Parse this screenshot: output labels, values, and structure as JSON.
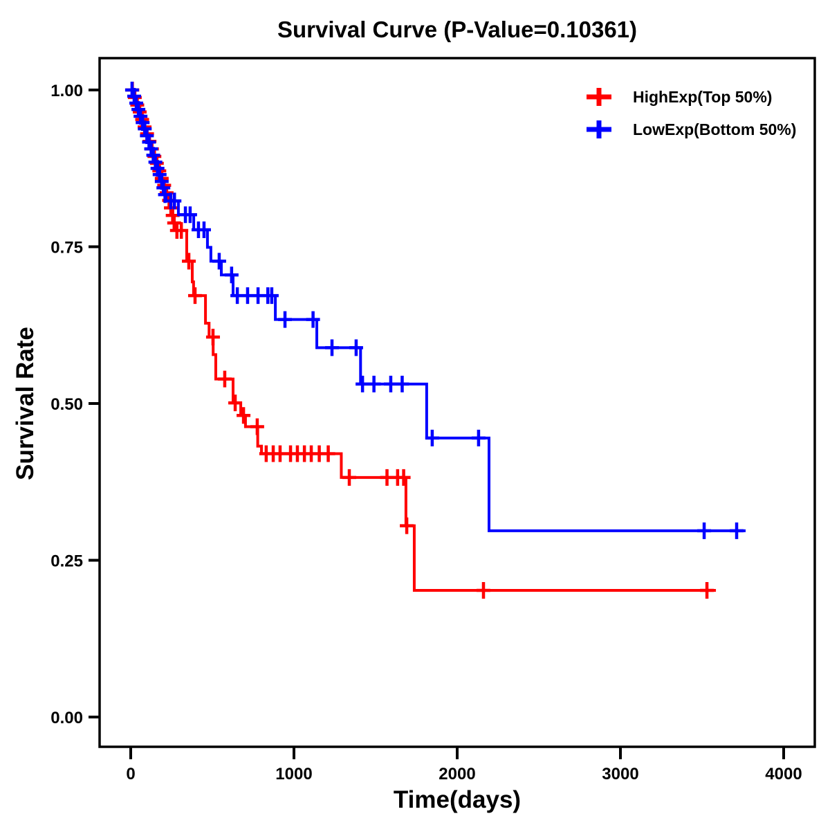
{
  "page": {
    "background_color": "#FFFFFF",
    "text_color": "#000000"
  },
  "chart_data": {
    "type": "line",
    "chart_style": "kaplan_meier_step_survival",
    "title": "Survival Curve (P-Value=0.10361)",
    "p_value": "0.10361",
    "xlabel": "Time(days)",
    "ylabel": "Survival Rate",
    "x_ticks": [
      "0",
      "1000",
      "2000",
      "3000",
      "4000"
    ],
    "x_tick_values": [
      0,
      1000,
      2000,
      3000,
      4000
    ],
    "y_ticks": [
      "1.00",
      "0.75",
      "0.50",
      "0.25",
      "0.00"
    ],
    "y_tick_values": [
      1.0,
      0.75,
      0.5,
      0.25,
      0.0
    ],
    "xlim": [
      -190,
      4190
    ],
    "ylim": [
      0,
      1.05
    ],
    "grid": false,
    "legend_position": "top-right",
    "marker_meaning": "censored-observation-plus-tick",
    "series": [
      {
        "name": "HighExp(Top 50%)",
        "color": "#FF0000",
        "end_time": 3585,
        "steps": [
          [
            0,
            1.0
          ],
          [
            15,
            0.988
          ],
          [
            30,
            0.976
          ],
          [
            45,
            0.965
          ],
          [
            60,
            0.953
          ],
          [
            75,
            0.941
          ],
          [
            90,
            0.93
          ],
          [
            105,
            0.918
          ],
          [
            120,
            0.906
          ],
          [
            135,
            0.894
          ],
          [
            150,
            0.883
          ],
          [
            165,
            0.871
          ],
          [
            180,
            0.859
          ],
          [
            195,
            0.848
          ],
          [
            210,
            0.836
          ],
          [
            225,
            0.824
          ],
          [
            240,
            0.812
          ],
          [
            252,
            0.8
          ],
          [
            262,
            0.788
          ],
          [
            270,
            0.776
          ],
          [
            343,
            0.727
          ],
          [
            377,
            0.694
          ],
          [
            385,
            0.672
          ],
          [
            458,
            0.628
          ],
          [
            480,
            0.606
          ],
          [
            505,
            0.578
          ],
          [
            521,
            0.539
          ],
          [
            627,
            0.501
          ],
          [
            674,
            0.481
          ],
          [
            703,
            0.463
          ],
          [
            778,
            0.432
          ],
          [
            801,
            0.42
          ],
          [
            1290,
            0.382
          ],
          [
            1686,
            0.305
          ],
          [
            1737,
            0.202
          ]
        ],
        "censors": [
          [
            10,
            1.0
          ],
          [
            25,
            0.988
          ],
          [
            40,
            0.976
          ],
          [
            55,
            0.965
          ],
          [
            70,
            0.953
          ],
          [
            85,
            0.941
          ],
          [
            100,
            0.93
          ],
          [
            115,
            0.918
          ],
          [
            130,
            0.906
          ],
          [
            145,
            0.894
          ],
          [
            160,
            0.883
          ],
          [
            175,
            0.871
          ],
          [
            190,
            0.859
          ],
          [
            205,
            0.848
          ],
          [
            220,
            0.836
          ],
          [
            235,
            0.824
          ],
          [
            246,
            0.812
          ],
          [
            257,
            0.8
          ],
          [
            266,
            0.788
          ],
          [
            283,
            0.776
          ],
          [
            310,
            0.776
          ],
          [
            356,
            0.727
          ],
          [
            394,
            0.672
          ],
          [
            504,
            0.606
          ],
          [
            576,
            0.539
          ],
          [
            640,
            0.501
          ],
          [
            691,
            0.481
          ],
          [
            775,
            0.463
          ],
          [
            830,
            0.42
          ],
          [
            873,
            0.42
          ],
          [
            915,
            0.42
          ],
          [
            979,
            0.42
          ],
          [
            1021,
            0.42
          ],
          [
            1064,
            0.42
          ],
          [
            1106,
            0.42
          ],
          [
            1155,
            0.42
          ],
          [
            1210,
            0.42
          ],
          [
            1339,
            0.382
          ],
          [
            1570,
            0.382
          ],
          [
            1635,
            0.382
          ],
          [
            1672,
            0.382
          ],
          [
            1691,
            0.305
          ],
          [
            2161,
            0.202
          ],
          [
            3530,
            0.202
          ]
        ]
      },
      {
        "name": "LowExp(Bottom 50%)",
        "color": "#0000FF",
        "end_time": 3767,
        "steps": [
          [
            0,
            1.0
          ],
          [
            13,
            0.99
          ],
          [
            26,
            0.979
          ],
          [
            39,
            0.969
          ],
          [
            52,
            0.958
          ],
          [
            65,
            0.948
          ],
          [
            78,
            0.938
          ],
          [
            91,
            0.927
          ],
          [
            104,
            0.917
          ],
          [
            117,
            0.906
          ],
          [
            130,
            0.896
          ],
          [
            143,
            0.885
          ],
          [
            156,
            0.875
          ],
          [
            169,
            0.865
          ],
          [
            182,
            0.854
          ],
          [
            195,
            0.844
          ],
          [
            205,
            0.833
          ],
          [
            216,
            0.823
          ],
          [
            292,
            0.801
          ],
          [
            386,
            0.777
          ],
          [
            470,
            0.749
          ],
          [
            491,
            0.727
          ],
          [
            555,
            0.705
          ],
          [
            627,
            0.672
          ],
          [
            886,
            0.634
          ],
          [
            1140,
            0.589
          ],
          [
            1408,
            0.531
          ],
          [
            1813,
            0.445
          ],
          [
            2195,
            0.297
          ]
        ],
        "censors": [
          [
            8,
            1.0
          ],
          [
            21,
            0.99
          ],
          [
            34,
            0.979
          ],
          [
            47,
            0.969
          ],
          [
            60,
            0.958
          ],
          [
            73,
            0.948
          ],
          [
            86,
            0.938
          ],
          [
            99,
            0.927
          ],
          [
            112,
            0.917
          ],
          [
            125,
            0.906
          ],
          [
            138,
            0.896
          ],
          [
            151,
            0.885
          ],
          [
            164,
            0.875
          ],
          [
            177,
            0.865
          ],
          [
            190,
            0.854
          ],
          [
            200,
            0.844
          ],
          [
            210,
            0.833
          ],
          [
            246,
            0.823
          ],
          [
            268,
            0.823
          ],
          [
            335,
            0.801
          ],
          [
            364,
            0.801
          ],
          [
            415,
            0.777
          ],
          [
            449,
            0.777
          ],
          [
            542,
            0.727
          ],
          [
            618,
            0.705
          ],
          [
            653,
            0.672
          ],
          [
            716,
            0.672
          ],
          [
            780,
            0.672
          ],
          [
            840,
            0.672
          ],
          [
            864,
            0.672
          ],
          [
            945,
            0.634
          ],
          [
            1117,
            0.634
          ],
          [
            1233,
            0.589
          ],
          [
            1381,
            0.589
          ],
          [
            1420,
            0.531
          ],
          [
            1490,
            0.531
          ],
          [
            1593,
            0.531
          ],
          [
            1663,
            0.531
          ],
          [
            1847,
            0.445
          ],
          [
            2131,
            0.445
          ],
          [
            3513,
            0.297
          ],
          [
            3712,
            0.297
          ]
        ]
      }
    ]
  }
}
